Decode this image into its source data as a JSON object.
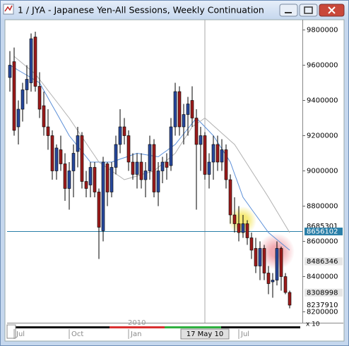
{
  "chart_data": {
    "type": "candlestick",
    "title": "1 / JYA - Japanese Yen-All Sessions, Weekly Continuation",
    "categories": [
      null,
      "Jul",
      null,
      null,
      null,
      null,
      null,
      null,
      null,
      null,
      null,
      null,
      null,
      null,
      "Oct",
      null,
      null,
      null,
      null,
      null,
      null,
      null,
      null,
      null,
      null,
      null,
      null,
      null,
      "Jan",
      null,
      null,
      null,
      null,
      null,
      null,
      null,
      null,
      null,
      null,
      null,
      null,
      null,
      null,
      null,
      null,
      null,
      "17 May 10",
      null,
      null,
      null,
      null,
      null,
      null,
      null,
      "Jul",
      null,
      null,
      null,
      null,
      null,
      null,
      null,
      null,
      null,
      null,
      null,
      null
    ],
    "year_label": "2010",
    "cursor_category": 46,
    "open": [
      9530000,
      9620000,
      9250000,
      9350000,
      9460000,
      9500000,
      9760000,
      9480000,
      9370000,
      9250000,
      9200000,
      9000000,
      9120000,
      9040000,
      8900000,
      9000000,
      9110000,
      9200000,
      8940000,
      8920000,
      9020000,
      8880000,
      8660000,
      9040000,
      8880000,
      9020000,
      9150000,
      9250000,
      9200000,
      9050000,
      8980000,
      9050000,
      8950000,
      9000000,
      9150000,
      8880000,
      9000000,
      9050000,
      9030000,
      9250000,
      9450000,
      9250000,
      9320000,
      9400000,
      9300000,
      9150000,
      9200000,
      8980000,
      9050000,
      9150000,
      9050000,
      9120000,
      8950000,
      8750000,
      8700000,
      8650000,
      8700000,
      8620000,
      8560000,
      8460000,
      8560000,
      8420000,
      8370000,
      8380000,
      8560000,
      8400000,
      8310000
    ],
    "high": [
      9680000,
      9700000,
      9400000,
      9500000,
      9600000,
      9780000,
      9790000,
      9560000,
      9450000,
      9350000,
      9230000,
      9150000,
      9200000,
      9100000,
      9050000,
      9150000,
      9250000,
      9220000,
      9000000,
      9050000,
      9050000,
      8900000,
      9080000,
      9050000,
      9050000,
      9200000,
      9350000,
      9300000,
      9230000,
      9100000,
      9100000,
      9100000,
      9050000,
      9200000,
      9180000,
      9050000,
      9080000,
      9100000,
      9300000,
      9500000,
      9480000,
      9380000,
      9420000,
      9480000,
      9350000,
      9250000,
      9220000,
      9100000,
      9200000,
      9200000,
      9180000,
      9150000,
      8980000,
      8850000,
      8800000,
      8750000,
      8720000,
      8650000,
      8620000,
      8600000,
      8580000,
      8460000,
      8420000,
      8600000,
      8570000,
      8420000,
      8320000
    ],
    "low": [
      9450000,
      9200000,
      9150000,
      9280000,
      9380000,
      9450000,
      9450000,
      9300000,
      9200000,
      9120000,
      8950000,
      8950000,
      9000000,
      8830000,
      8780000,
      8850000,
      9020000,
      8900000,
      8850000,
      8850000,
      8850000,
      8500000,
      8600000,
      8800000,
      8850000,
      8980000,
      9100000,
      9150000,
      9000000,
      8950000,
      8900000,
      8900000,
      8850000,
      8950000,
      8850000,
      8800000,
      8930000,
      8950000,
      9000000,
      9200000,
      9200000,
      9150000,
      9200000,
      9250000,
      8780000,
      9000000,
      8950000,
      8900000,
      8950000,
      9000000,
      9000000,
      8900000,
      8700000,
      8650000,
      8600000,
      8620000,
      8580000,
      8500000,
      8420000,
      8380000,
      8380000,
      8300000,
      8280000,
      8350000,
      8320000,
      8300000,
      8220000
    ],
    "close": [
      9600000,
      9230000,
      9350000,
      9460000,
      9520000,
      9750000,
      9480000,
      9350000,
      9250000,
      9200000,
      9000000,
      9130000,
      9040000,
      8900000,
      9000000,
      9100000,
      9200000,
      8940000,
      8900000,
      9020000,
      8880000,
      8680000,
      9050000,
      8880000,
      9020000,
      9150000,
      9250000,
      9200000,
      9050000,
      8980000,
      9050000,
      8950000,
      9000000,
      9150000,
      8880000,
      9000000,
      9050000,
      9020000,
      9250000,
      9450000,
      9250000,
      9320000,
      9380000,
      9300000,
      9150000,
      9200000,
      8980000,
      9050000,
      9150000,
      9050000,
      9120000,
      8950000,
      8750000,
      8700000,
      8650000,
      8700000,
      8620000,
      8550000,
      8460000,
      8560000,
      8420000,
      8360000,
      8380000,
      8560000,
      8400000,
      8310000,
      8237910
    ],
    "up_color": "#27489c",
    "down_color": "#9c1b1b",
    "moving_averages": [
      {
        "color": "#5b8fd8",
        "values": [
          9600000,
          9586000,
          9571000,
          9557000,
          9543000,
          9529000,
          9514000,
          9500000,
          9457000,
          9414000,
          9371000,
          9329000,
          9286000,
          9243000,
          9200000,
          9170000,
          9140000,
          9110000,
          9080000,
          9050000,
          9050000,
          9050000,
          9050000,
          9050000,
          9050000,
          9058000,
          9067000,
          9075000,
          9083000,
          9092000,
          9100000,
          9096000,
          9092000,
          9088000,
          9084000,
          9080000,
          9098000,
          9115000,
          9133000,
          9150000,
          9180000,
          9210000,
          9240000,
          9270000,
          9300000,
          9275000,
          9250000,
          9225000,
          9200000,
          9163000,
          9125000,
          9088000,
          9050000,
          8983000,
          8917000,
          8850000,
          8817000,
          8783000,
          8750000,
          8717000,
          8683000,
          8650000,
          8630000,
          8610000,
          8590000,
          8570000,
          8550000
        ]
      },
      {
        "color": "#b0b0b0",
        "values": [
          null,
          9650000,
          9630000,
          9610000,
          9590000,
          9570000,
          9550000,
          9519000,
          9488000,
          9456000,
          9425000,
          9394000,
          9363000,
          9331000,
          9300000,
          9264000,
          9229000,
          9193000,
          9157000,
          9121000,
          9086000,
          9050000,
          9033000,
          9017000,
          9000000,
          8983000,
          8967000,
          8950000,
          8957000,
          8964000,
          8971000,
          8979000,
          8986000,
          8993000,
          9000000,
          9020000,
          9040000,
          9060000,
          9080000,
          9100000,
          9138000,
          9175000,
          9213000,
          9250000,
          9267000,
          9283000,
          9300000,
          9279000,
          9257000,
          9236000,
          9214000,
          9193000,
          9171000,
          9150000,
          9113000,
          9075000,
          9038000,
          9000000,
          8963000,
          8925000,
          8888000,
          8850000,
          8810000,
          8770000,
          8730000,
          8690000,
          8650000
        ]
      }
    ],
    "ylim": [
      8150000,
      9850000
    ],
    "yticks": [
      8200000,
      8400000,
      8600000,
      8800000,
      9000000,
      9200000,
      9400000,
      9600000,
      9800000
    ],
    "price_labels": [
      {
        "value": 8685301,
        "highlight": false
      },
      {
        "value": 8656102,
        "highlight": true
      },
      {
        "value": 8486346,
        "highlight": false
      },
      {
        "value": 8308998,
        "highlight": false
      },
      {
        "value": 8237910,
        "highlight": false
      }
    ],
    "scale_note": "x 10"
  }
}
